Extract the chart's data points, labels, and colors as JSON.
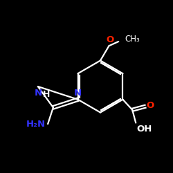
{
  "background_color": "#000000",
  "bond_color": "#ffffff",
  "N_color": "#3333ff",
  "O_color": "#ff2200",
  "figsize": [
    2.5,
    2.5
  ],
  "dpi": 100,
  "xlim": [
    0,
    10
  ],
  "ylim": [
    0,
    10
  ],
  "bond_lw": 1.6,
  "font_size": 9.0
}
